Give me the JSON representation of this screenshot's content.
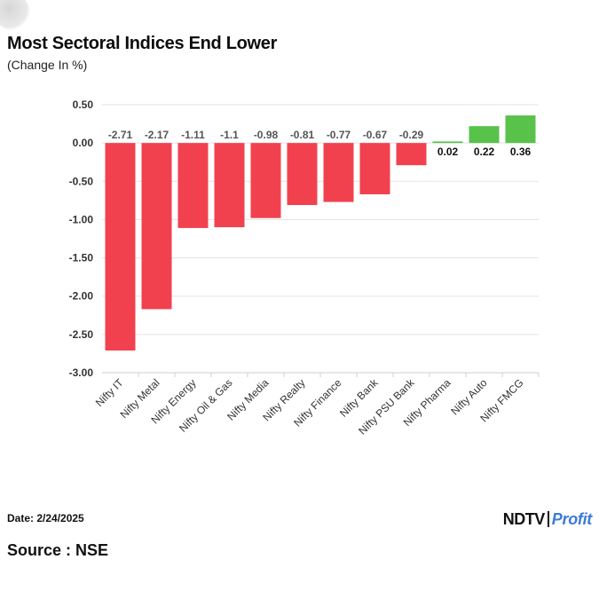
{
  "header": {
    "title": "Most Sectoral Indices End Lower",
    "subtitle": "(Change In %)"
  },
  "footer": {
    "date": "Date: 2/24/2025",
    "source": "Source : NSE"
  },
  "logo": {
    "brand_left": "NDTV",
    "brand_right": "Profit"
  },
  "colors": {
    "negative": "#f2414e",
    "positive": "#58c24b",
    "grid": "#e3e3e3",
    "label": "#333333"
  },
  "chart_data": {
    "type": "bar",
    "title": "Most Sectoral Indices End Lower",
    "ylabel": "(Change In %)",
    "xlabel": "",
    "categories": [
      "Nifty IT",
      "Nifty Metal",
      "Nifty Energy",
      "Nifty Oil & Gas",
      "Nifty Media",
      "Nifty Realty",
      "Nifty Finance",
      "Nifty Bank",
      "Nifty PSU Bank",
      "Nifty Pharma",
      "Nifty Auto",
      "Nifty FMCG"
    ],
    "values": [
      -2.71,
      -2.17,
      -1.11,
      -1.1,
      -0.98,
      -0.81,
      -0.77,
      -0.67,
      -0.29,
      0.02,
      0.22,
      0.36
    ],
    "value_labels": [
      "-2.71",
      "-2.17",
      "-1.11",
      "-1.1",
      "-0.98",
      "-0.81",
      "-0.77",
      "-0.67",
      "-0.29",
      "0.02",
      "0.22",
      "0.36"
    ],
    "ylim": [
      -3.0,
      0.5
    ],
    "yticks": [
      "0.50",
      "0.00",
      "-0.50",
      "-1.00",
      "-1.50",
      "-2.00",
      "-2.50",
      "-3.00"
    ],
    "ytick_values": [
      0.5,
      0.0,
      -0.5,
      -1.0,
      -1.5,
      -2.0,
      -2.5,
      -3.0
    ],
    "grid": true,
    "legend": "none"
  }
}
